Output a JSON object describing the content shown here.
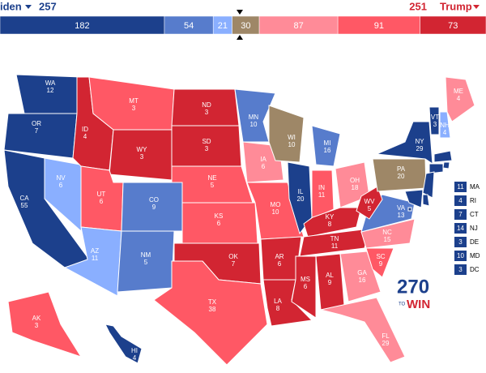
{
  "header": {
    "left_name": "iden",
    "left_votes": 257,
    "right_votes": 251,
    "right_name": "Trump"
  },
  "bar": [
    {
      "value": 182,
      "color": "#1c408c"
    },
    {
      "value": 54,
      "color": "#577ccc"
    },
    {
      "value": 21,
      "color": "#8aafff"
    },
    {
      "value": 30,
      "color": "#9e8767"
    },
    {
      "value": 87,
      "color": "#ff8b98"
    },
    {
      "value": 91,
      "color": "#ff5865"
    },
    {
      "value": 73,
      "color": "#d22532"
    }
  ],
  "states": [
    {
      "abbr": "WA",
      "votes": 12,
      "color": "#1c408c"
    },
    {
      "abbr": "OR",
      "votes": 7,
      "color": "#1c408c"
    },
    {
      "abbr": "CA",
      "votes": 55,
      "color": "#1c408c"
    },
    {
      "abbr": "NV",
      "votes": 6,
      "color": "#8aafff"
    },
    {
      "abbr": "ID",
      "votes": 4,
      "color": "#d22532"
    },
    {
      "abbr": "MT",
      "votes": 3,
      "color": "#ff5865"
    },
    {
      "abbr": "WY",
      "votes": 3,
      "color": "#d22532"
    },
    {
      "abbr": "UT",
      "votes": 6,
      "color": "#ff5865"
    },
    {
      "abbr": "CO",
      "votes": 9,
      "color": "#577ccc"
    },
    {
      "abbr": "AZ",
      "votes": 11,
      "color": "#8aafff"
    },
    {
      "abbr": "NM",
      "votes": 5,
      "color": "#577ccc"
    },
    {
      "abbr": "ND",
      "votes": 3,
      "color": "#d22532"
    },
    {
      "abbr": "SD",
      "votes": 3,
      "color": "#d22532"
    },
    {
      "abbr": "NE",
      "votes": 5,
      "color": "#ff5865"
    },
    {
      "abbr": "KS",
      "votes": 6,
      "color": "#ff5865"
    },
    {
      "abbr": "OK",
      "votes": 7,
      "color": "#d22532"
    },
    {
      "abbr": "TX",
      "votes": 38,
      "color": "#ff5865"
    },
    {
      "abbr": "MN",
      "votes": 10,
      "color": "#577ccc"
    },
    {
      "abbr": "IA",
      "votes": 6,
      "color": "#ff8b98"
    },
    {
      "abbr": "MO",
      "votes": 10,
      "color": "#ff5865"
    },
    {
      "abbr": "AR",
      "votes": 6,
      "color": "#d22532"
    },
    {
      "abbr": "LA",
      "votes": 8,
      "color": "#d22532"
    },
    {
      "abbr": "WI",
      "votes": 10,
      "color": "#9e8767"
    },
    {
      "abbr": "IL",
      "votes": 20,
      "color": "#1c408c"
    },
    {
      "abbr": "MI",
      "votes": 16,
      "color": "#577ccc"
    },
    {
      "abbr": "IN",
      "votes": 11,
      "color": "#ff5865"
    },
    {
      "abbr": "OH",
      "votes": 18,
      "color": "#ff8b98"
    },
    {
      "abbr": "KY",
      "votes": 8,
      "color": "#d22532"
    },
    {
      "abbr": "TN",
      "votes": 11,
      "color": "#d22532"
    },
    {
      "abbr": "MS",
      "votes": 6,
      "color": "#d22532"
    },
    {
      "abbr": "AL",
      "votes": 9,
      "color": "#d22532"
    },
    {
      "abbr": "GA",
      "votes": 16,
      "color": "#ff8b98"
    },
    {
      "abbr": "FL",
      "votes": 29,
      "color": "#ff8b98"
    },
    {
      "abbr": "SC",
      "votes": 9,
      "color": "#ff5865"
    },
    {
      "abbr": "NC",
      "votes": 15,
      "color": "#ff8b98"
    },
    {
      "abbr": "VA",
      "votes": 13,
      "color": "#577ccc"
    },
    {
      "abbr": "WV",
      "votes": 5,
      "color": "#d22532"
    },
    {
      "abbr": "PA",
      "votes": 20,
      "color": "#9e8767"
    },
    {
      "abbr": "NY",
      "votes": 29,
      "color": "#1c408c"
    },
    {
      "abbr": "VT",
      "votes": 3,
      "color": "#1c408c"
    },
    {
      "abbr": "NH",
      "votes": 4,
      "color": "#8aafff"
    },
    {
      "abbr": "ME",
      "votes": 4,
      "color": "#ff8b98"
    },
    {
      "abbr": "AK",
      "votes": 3,
      "color": "#ff5865"
    },
    {
      "abbr": "HI",
      "votes": 4,
      "color": "#1c408c"
    }
  ],
  "small_states": [
    {
      "abbr": "MA",
      "votes": 11,
      "color": "#1c408c"
    },
    {
      "abbr": "RI",
      "votes": 4,
      "color": "#1c408c"
    },
    {
      "abbr": "CT",
      "votes": 7,
      "color": "#1c408c"
    },
    {
      "abbr": "NJ",
      "votes": 14,
      "color": "#1c408c"
    },
    {
      "abbr": "DE",
      "votes": 3,
      "color": "#1c408c"
    },
    {
      "abbr": "MD",
      "votes": 10,
      "color": "#1c408c"
    },
    {
      "abbr": "DC",
      "votes": 3,
      "color": "#1c408c"
    }
  ],
  "logo": {
    "number": 270,
    "small": "TO",
    "word": "WIN"
  }
}
